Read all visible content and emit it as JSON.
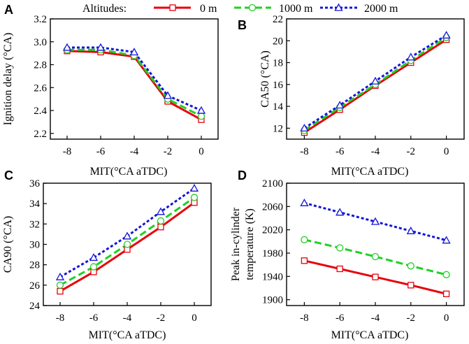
{
  "legend": {
    "title": "Altitudes:",
    "entries": [
      "0 m",
      "1000 m",
      "2000 m"
    ]
  },
  "series_styles": [
    {
      "name": "0 m",
      "color": "#e8000b",
      "dash": "solid",
      "marker": "square"
    },
    {
      "name": "1000 m",
      "color": "#1fd023",
      "dash": "dashed",
      "marker": "circle"
    },
    {
      "name": "2000 m",
      "color": "#1515d8",
      "dash": "dotted",
      "marker": "triangle"
    }
  ],
  "chart_data": [
    {
      "panel": "A",
      "type": "line",
      "xlabel": "MIT(°CA aTDC)",
      "ylabel": "Ignition delay (°CA)",
      "ylabel_lines": [
        "Ignition delay (°CA)"
      ],
      "x": [
        -8,
        -6,
        -4,
        -2,
        0
      ],
      "xlim": [
        -9,
        1
      ],
      "ylim": [
        2.15,
        3.2
      ],
      "yticks": [
        2.2,
        2.4,
        2.6,
        2.8,
        3.0,
        3.2
      ],
      "ytick_labels": [
        "2.2",
        "2.4",
        "2.6",
        "2.8",
        "3.0",
        "3.2"
      ],
      "xtick_labels": [
        "-8",
        "-6",
        "-4",
        "-2",
        "0"
      ],
      "series": [
        {
          "name": "0 m",
          "values": [
            2.92,
            2.91,
            2.87,
            2.48,
            2.32
          ]
        },
        {
          "name": "1000 m",
          "values": [
            2.93,
            2.93,
            2.88,
            2.5,
            2.35
          ]
        },
        {
          "name": "2000 m",
          "values": [
            2.95,
            2.95,
            2.91,
            2.53,
            2.4
          ]
        }
      ]
    },
    {
      "panel": "B",
      "type": "line",
      "xlabel": "MIT(°CA aTDC)",
      "ylabel": "CA50 (°CA)",
      "ylabel_lines": [
        "CA50 (°CA)"
      ],
      "x": [
        -8,
        -6,
        -4,
        -2,
        0
      ],
      "xlim": [
        -9,
        1
      ],
      "ylim": [
        11,
        22
      ],
      "yticks": [
        12,
        14,
        16,
        18,
        20,
        22
      ],
      "ytick_labels": [
        "12",
        "14",
        "16",
        "18",
        "20",
        "22"
      ],
      "xtick_labels": [
        "-8",
        "-6",
        "-4",
        "-2",
        "0"
      ],
      "series": [
        {
          "name": "0 m",
          "values": [
            11.6,
            13.7,
            15.9,
            18.0,
            20.1
          ]
        },
        {
          "name": "1000 m",
          "values": [
            11.8,
            13.9,
            16.0,
            18.2,
            20.3
          ]
        },
        {
          "name": "2000 m",
          "values": [
            12.0,
            14.1,
            16.3,
            18.5,
            20.5
          ]
        }
      ]
    },
    {
      "panel": "C",
      "type": "line",
      "xlabel": "",
      "ylabel": "CA90 (°CA)",
      "ylabel_lines": [
        "CA90 (°CA)"
      ],
      "x": [
        -8,
        -6,
        -4,
        -2,
        0
      ],
      "xlim": [
        -9,
        1
      ],
      "ylim": [
        24,
        36
      ],
      "yticks": [
        24,
        26,
        28,
        30,
        32,
        34,
        36
      ],
      "ytick_labels": [
        "24",
        "26",
        "28",
        "30",
        "32",
        "34",
        "36"
      ],
      "xtick_labels": [
        "-8",
        "-6",
        "-4",
        "-2",
        "0"
      ],
      "series": [
        {
          "name": "0 m",
          "values": [
            25.4,
            27.3,
            29.5,
            31.7,
            34.1
          ]
        },
        {
          "name": "1000 m",
          "values": [
            26.0,
            27.8,
            30.0,
            32.3,
            34.6
          ]
        },
        {
          "name": "2000 m",
          "values": [
            26.8,
            28.7,
            30.8,
            33.2,
            35.5
          ]
        }
      ]
    },
    {
      "panel": "D",
      "type": "line",
      "xlabel": "MIT(°CA aTDC)",
      "ylabel": "Peak in-cylinder temperature (K)",
      "ylabel_lines": [
        "Peak in-cylinder",
        "temperature (K)"
      ],
      "x": [
        -8,
        -6,
        -4,
        -2,
        0
      ],
      "xlim": [
        -9,
        1
      ],
      "ylim": [
        1890,
        2100
      ],
      "yticks": [
        1900,
        1940,
        1980,
        2020,
        2060,
        2100
      ],
      "ytick_labels": [
        "1900",
        "1940",
        "1980",
        "2020",
        "2060",
        "2100"
      ],
      "xtick_labels": [
        "-8",
        "-6",
        "-4",
        "-2",
        "0"
      ],
      "series": [
        {
          "name": "0 m",
          "values": [
            1967,
            1953,
            1939,
            1925,
            1910
          ]
        },
        {
          "name": "1000 m",
          "values": [
            2003,
            1989,
            1974,
            1958,
            1943
          ]
        },
        {
          "name": "2000 m",
          "values": [
            2066,
            2050,
            2034,
            2018,
            2002
          ]
        }
      ]
    }
  ],
  "bottom_xlabel": "MIT(°CA aTDC)"
}
